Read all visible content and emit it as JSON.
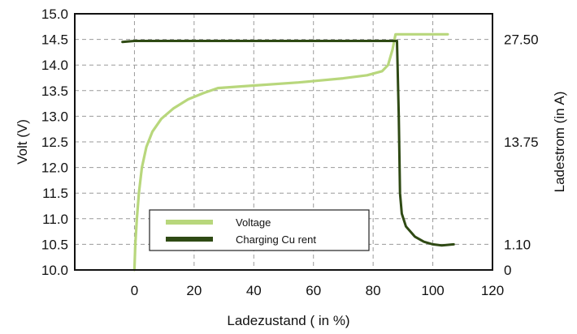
{
  "chart_data": {
    "type": "line",
    "title": "",
    "xlabel": "Ladezustand ( in %)",
    "ylabel": "Volt (V)",
    "y2label": "Ladestrom (in A)",
    "xlim": [
      -20,
      120
    ],
    "ylim": [
      10.0,
      15.0
    ],
    "grid": true,
    "legend_position": "bottom-center",
    "x_ticks": [
      "0",
      "20",
      "40",
      "60",
      "80",
      "100",
      "120"
    ],
    "y_ticks": [
      "10.0",
      "10.5",
      "11.0",
      "11.5",
      "12.0",
      "12.5",
      "13.0",
      "13.5",
      "14.0",
      "14.5",
      "15.0"
    ],
    "y2_ticks": [
      {
        "label": "27.50",
        "at_volt": 14.5
      },
      {
        "label": "13.75",
        "at_volt": 12.5
      },
      {
        "label": "1.10",
        "at_volt": 10.5
      },
      {
        "label": "0",
        "at_volt": 10.0
      }
    ],
    "series": [
      {
        "name": "Voltage",
        "color": "#b8d77c",
        "points": [
          [
            0.0,
            10.0
          ],
          [
            0.3,
            10.5
          ],
          [
            0.8,
            11.0
          ],
          [
            1.5,
            11.5
          ],
          [
            2.5,
            12.0
          ],
          [
            4.0,
            12.4
          ],
          [
            6.0,
            12.7
          ],
          [
            9.0,
            12.95
          ],
          [
            13.0,
            13.15
          ],
          [
            18.0,
            13.33
          ],
          [
            23.0,
            13.45
          ],
          [
            28.0,
            13.55
          ],
          [
            40.0,
            13.6
          ],
          [
            55.0,
            13.66
          ],
          [
            70.0,
            13.74
          ],
          [
            78.0,
            13.8
          ],
          [
            83.0,
            13.88
          ],
          [
            85.0,
            14.0
          ],
          [
            86.5,
            14.3
          ],
          [
            87.5,
            14.6
          ],
          [
            105.0,
            14.6
          ]
        ]
      },
      {
        "name": "Charging Cu rent",
        "color": "#2f4a14",
        "points": [
          [
            -4.0,
            14.45
          ],
          [
            0.0,
            14.47
          ],
          [
            88.0,
            14.47
          ],
          [
            88.6,
            13.0
          ],
          [
            89.0,
            11.5
          ],
          [
            89.6,
            11.1
          ],
          [
            91.0,
            10.85
          ],
          [
            94.0,
            10.65
          ],
          [
            97.0,
            10.55
          ],
          [
            100.0,
            10.5
          ],
          [
            103.0,
            10.48
          ],
          [
            107.0,
            10.5
          ]
        ]
      }
    ]
  },
  "colors": {
    "voltage": "#b8d77c",
    "current": "#2f4a14",
    "grid": "#9a9a9a",
    "frame": "#111111"
  }
}
